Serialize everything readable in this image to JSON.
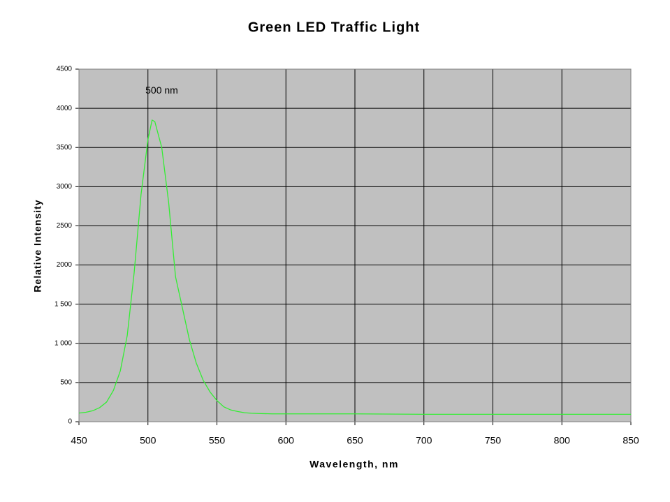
{
  "chart_data": {
    "type": "line",
    "title": "Green LED Traffic Light",
    "x_label": "Wavelength, nm",
    "y_label": "Relative Intensity",
    "x": [
      450,
      455,
      460,
      465,
      470,
      475,
      480,
      485,
      490,
      495,
      500,
      503,
      505,
      510,
      515,
      520,
      525,
      530,
      535,
      540,
      545,
      550,
      555,
      560,
      565,
      570,
      575,
      580,
      590,
      600,
      650,
      700,
      750,
      800,
      850
    ],
    "series": [
      {
        "name": "Green LED",
        "color": "#33ee33",
        "values": [
          110,
          120,
          140,
          180,
          250,
          400,
          650,
          1100,
          1900,
          2900,
          3600,
          3850,
          3830,
          3500,
          2800,
          1850,
          1450,
          1050,
          750,
          530,
          380,
          270,
          190,
          150,
          130,
          115,
          108,
          105,
          100,
          100,
          100,
          95,
          95,
          95,
          95
        ]
      }
    ],
    "xlim": [
      450,
      850
    ],
    "xticks": [
      450,
      500,
      550,
      600,
      650,
      700,
      750,
      800,
      850
    ],
    "ylim": [
      0,
      4500
    ],
    "yticks": [
      0,
      500,
      {
        "value": 1000,
        "label": "1 000"
      },
      {
        "value": 1500,
        "label": "1 500"
      },
      2000,
      2500,
      3000,
      3500,
      4000,
      4500
    ],
    "grid": true,
    "plot_background": "#c0c0c0",
    "annotations": [
      {
        "text": "500 nm",
        "x": 510,
        "y": 4220
      }
    ]
  }
}
